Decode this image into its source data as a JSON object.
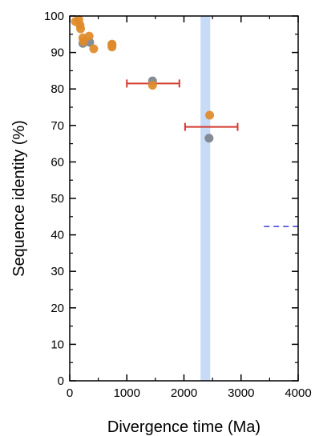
{
  "chart_data": {
    "type": "scatter",
    "xlabel": "Divergence time (Ma)",
    "ylabel": "Sequence identity (%)",
    "xlim": [
      0,
      4000
    ],
    "ylim": [
      0,
      100
    ],
    "x_ticks": [
      "0",
      "1000",
      "2000",
      "3000",
      "4000"
    ],
    "y_ticks": [
      "0",
      "10",
      "20",
      "30",
      "40",
      "50",
      "60",
      "70",
      "80",
      "90",
      "100"
    ],
    "grid": false,
    "legend": "none",
    "colors": {
      "orange": "#e08a28",
      "gray": "#7d838c",
      "error_bar": "#d43a2f",
      "band": "#c7dbf6",
      "dashed_line": "#3b3bdb"
    },
    "series": [
      {
        "color": "orange",
        "points": [
          {
            "x": 100,
            "y": 98.5
          },
          {
            "x": 160,
            "y": 99.0
          },
          {
            "x": 180,
            "y": 97.5
          },
          {
            "x": 190,
            "y": 96.5
          },
          {
            "x": 230,
            "y": 94.0
          },
          {
            "x": 240,
            "y": 93.0
          },
          {
            "x": 340,
            "y": 94.5
          },
          {
            "x": 420,
            "y": 91.0
          },
          {
            "x": 740,
            "y": 92.3
          },
          {
            "x": 740,
            "y": 91.5
          },
          {
            "x": 1450,
            "y": 81.0
          },
          {
            "x": 2450,
            "y": 72.8
          }
        ]
      },
      {
        "color": "gray",
        "points": [
          {
            "x": 230,
            "y": 92.5
          },
          {
            "x": 350,
            "y": 92.8
          },
          {
            "x": 740,
            "y": 92.0
          },
          {
            "x": 1450,
            "y": 82.2
          },
          {
            "x": 2440,
            "y": 66.5
          }
        ]
      }
    ],
    "error_bars": [
      {
        "y": 81.5,
        "x_low": 1000,
        "x_high": 1920
      },
      {
        "y": 69.6,
        "x_low": 2020,
        "x_high": 2940
      }
    ],
    "vertical_band": {
      "x_low": 2290,
      "x_high": 2460
    },
    "dashed_segment": {
      "y": 42.3,
      "x_low": 3400,
      "x_high": 4000
    }
  }
}
